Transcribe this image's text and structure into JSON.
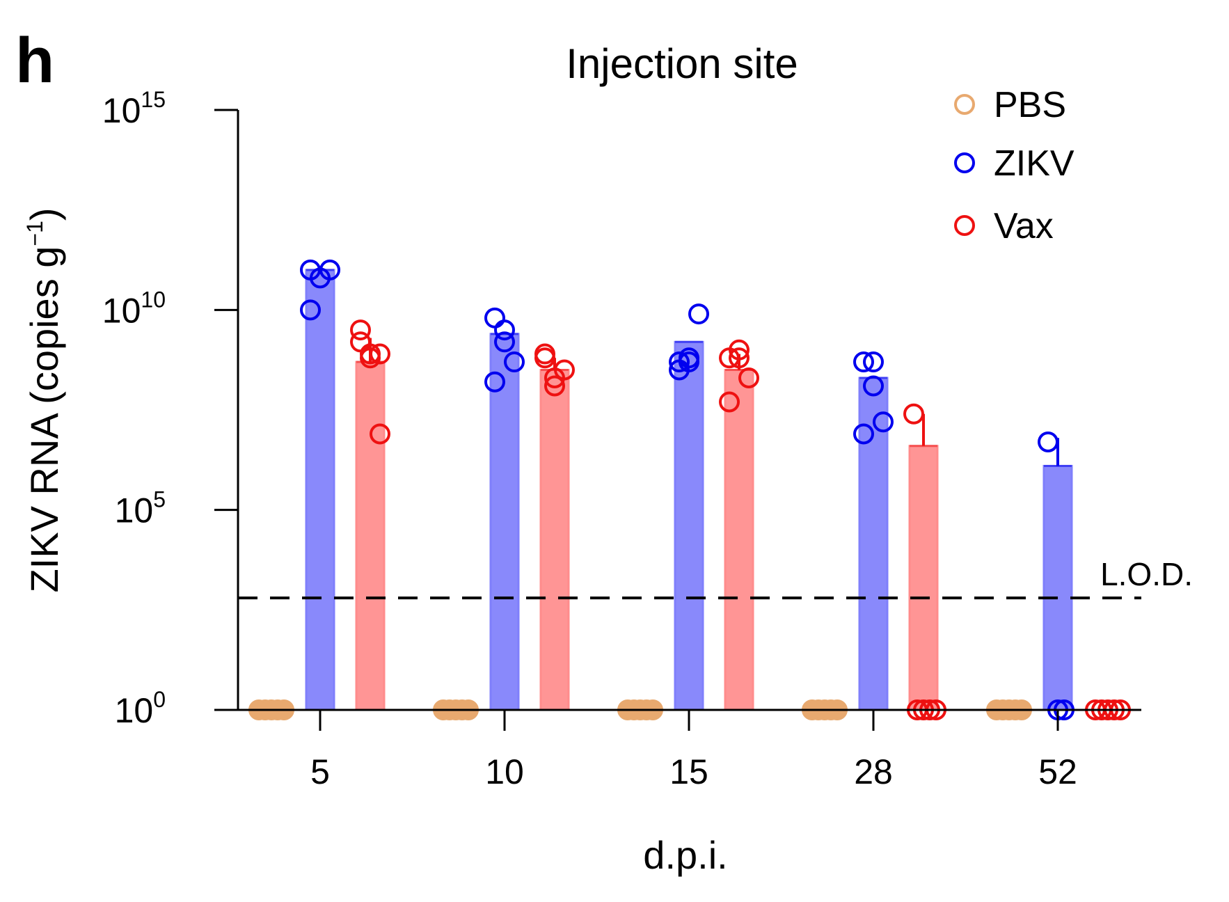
{
  "panel_label": "h",
  "chart_data": {
    "type": "bar",
    "title": "Injection site",
    "xlabel": "d.p.i.",
    "ylabel": {
      "text": "ZIKV RNA (copies g",
      "sup": "−1",
      "close": ")"
    },
    "y_scale": "log10",
    "ylim_exponent": [
      0,
      15
    ],
    "y_ticks": [
      {
        "base": "10",
        "exp": "15",
        "exponent": 15
      },
      {
        "base": "10",
        "exp": "10",
        "exponent": 10
      },
      {
        "base": "10",
        "exp": "5",
        "exponent": 5
      },
      {
        "base": "10",
        "exp": "0",
        "exponent": 0
      }
    ],
    "categories": [
      "5",
      "10",
      "15",
      "28",
      "52"
    ],
    "lod": {
      "label": "L.O.D.",
      "log10_value": 2.8
    },
    "colors": {
      "PBS": "#E8A96F",
      "ZIKV": "#0000EE",
      "ZIKV_bar": "#7F7FFB",
      "Vax": "#EE1111",
      "Vax_bar": "#FF8C8C"
    },
    "series": [
      {
        "name": "PBS",
        "bar_log10": [
          0,
          0,
          0,
          0,
          0
        ],
        "points_log10": [
          [
            0,
            0,
            0,
            0,
            0
          ],
          [
            0,
            0,
            0,
            0,
            0
          ],
          [
            0,
            0,
            0,
            0,
            0
          ],
          [
            0,
            0,
            0,
            0,
            0
          ],
          [
            0,
            0,
            0,
            0,
            0
          ]
        ]
      },
      {
        "name": "ZIKV",
        "bar_log10": [
          11.0,
          9.4,
          9.2,
          8.3,
          6.1
        ],
        "err_log10": [
          11.0,
          9.4,
          9.2,
          8.3,
          6.8
        ],
        "points_log10": [
          [
            11.0,
            10.8,
            11.0,
            10.0
          ],
          [
            9.8,
            9.2,
            8.7,
            8.2,
            9.5
          ],
          [
            8.5,
            8.7,
            9.9,
            8.7,
            8.8
          ],
          [
            8.7,
            8.1,
            7.2,
            6.9,
            8.7
          ],
          [
            6.7,
            0,
            0
          ]
        ]
      },
      {
        "name": "Vax",
        "bar_log10": [
          8.7,
          8.5,
          8.5,
          6.6,
          0
        ],
        "err_log10": [
          9.3,
          8.8,
          8.9,
          7.4,
          0
        ],
        "points_log10": [
          [
            9.5,
            8.9,
            8.9,
            9.2,
            8.8,
            6.9
          ],
          [
            8.9,
            8.3,
            8.5,
            8.8,
            8.1
          ],
          [
            8.8,
            9.0,
            8.3,
            7.7,
            8.8
          ],
          [
            7.4,
            0,
            0,
            0,
            0
          ],
          [
            0,
            0,
            0,
            0,
            0
          ]
        ]
      }
    ],
    "legend": {
      "placement": "top-right",
      "entries": [
        "PBS",
        "ZIKV",
        "Vax"
      ]
    }
  }
}
